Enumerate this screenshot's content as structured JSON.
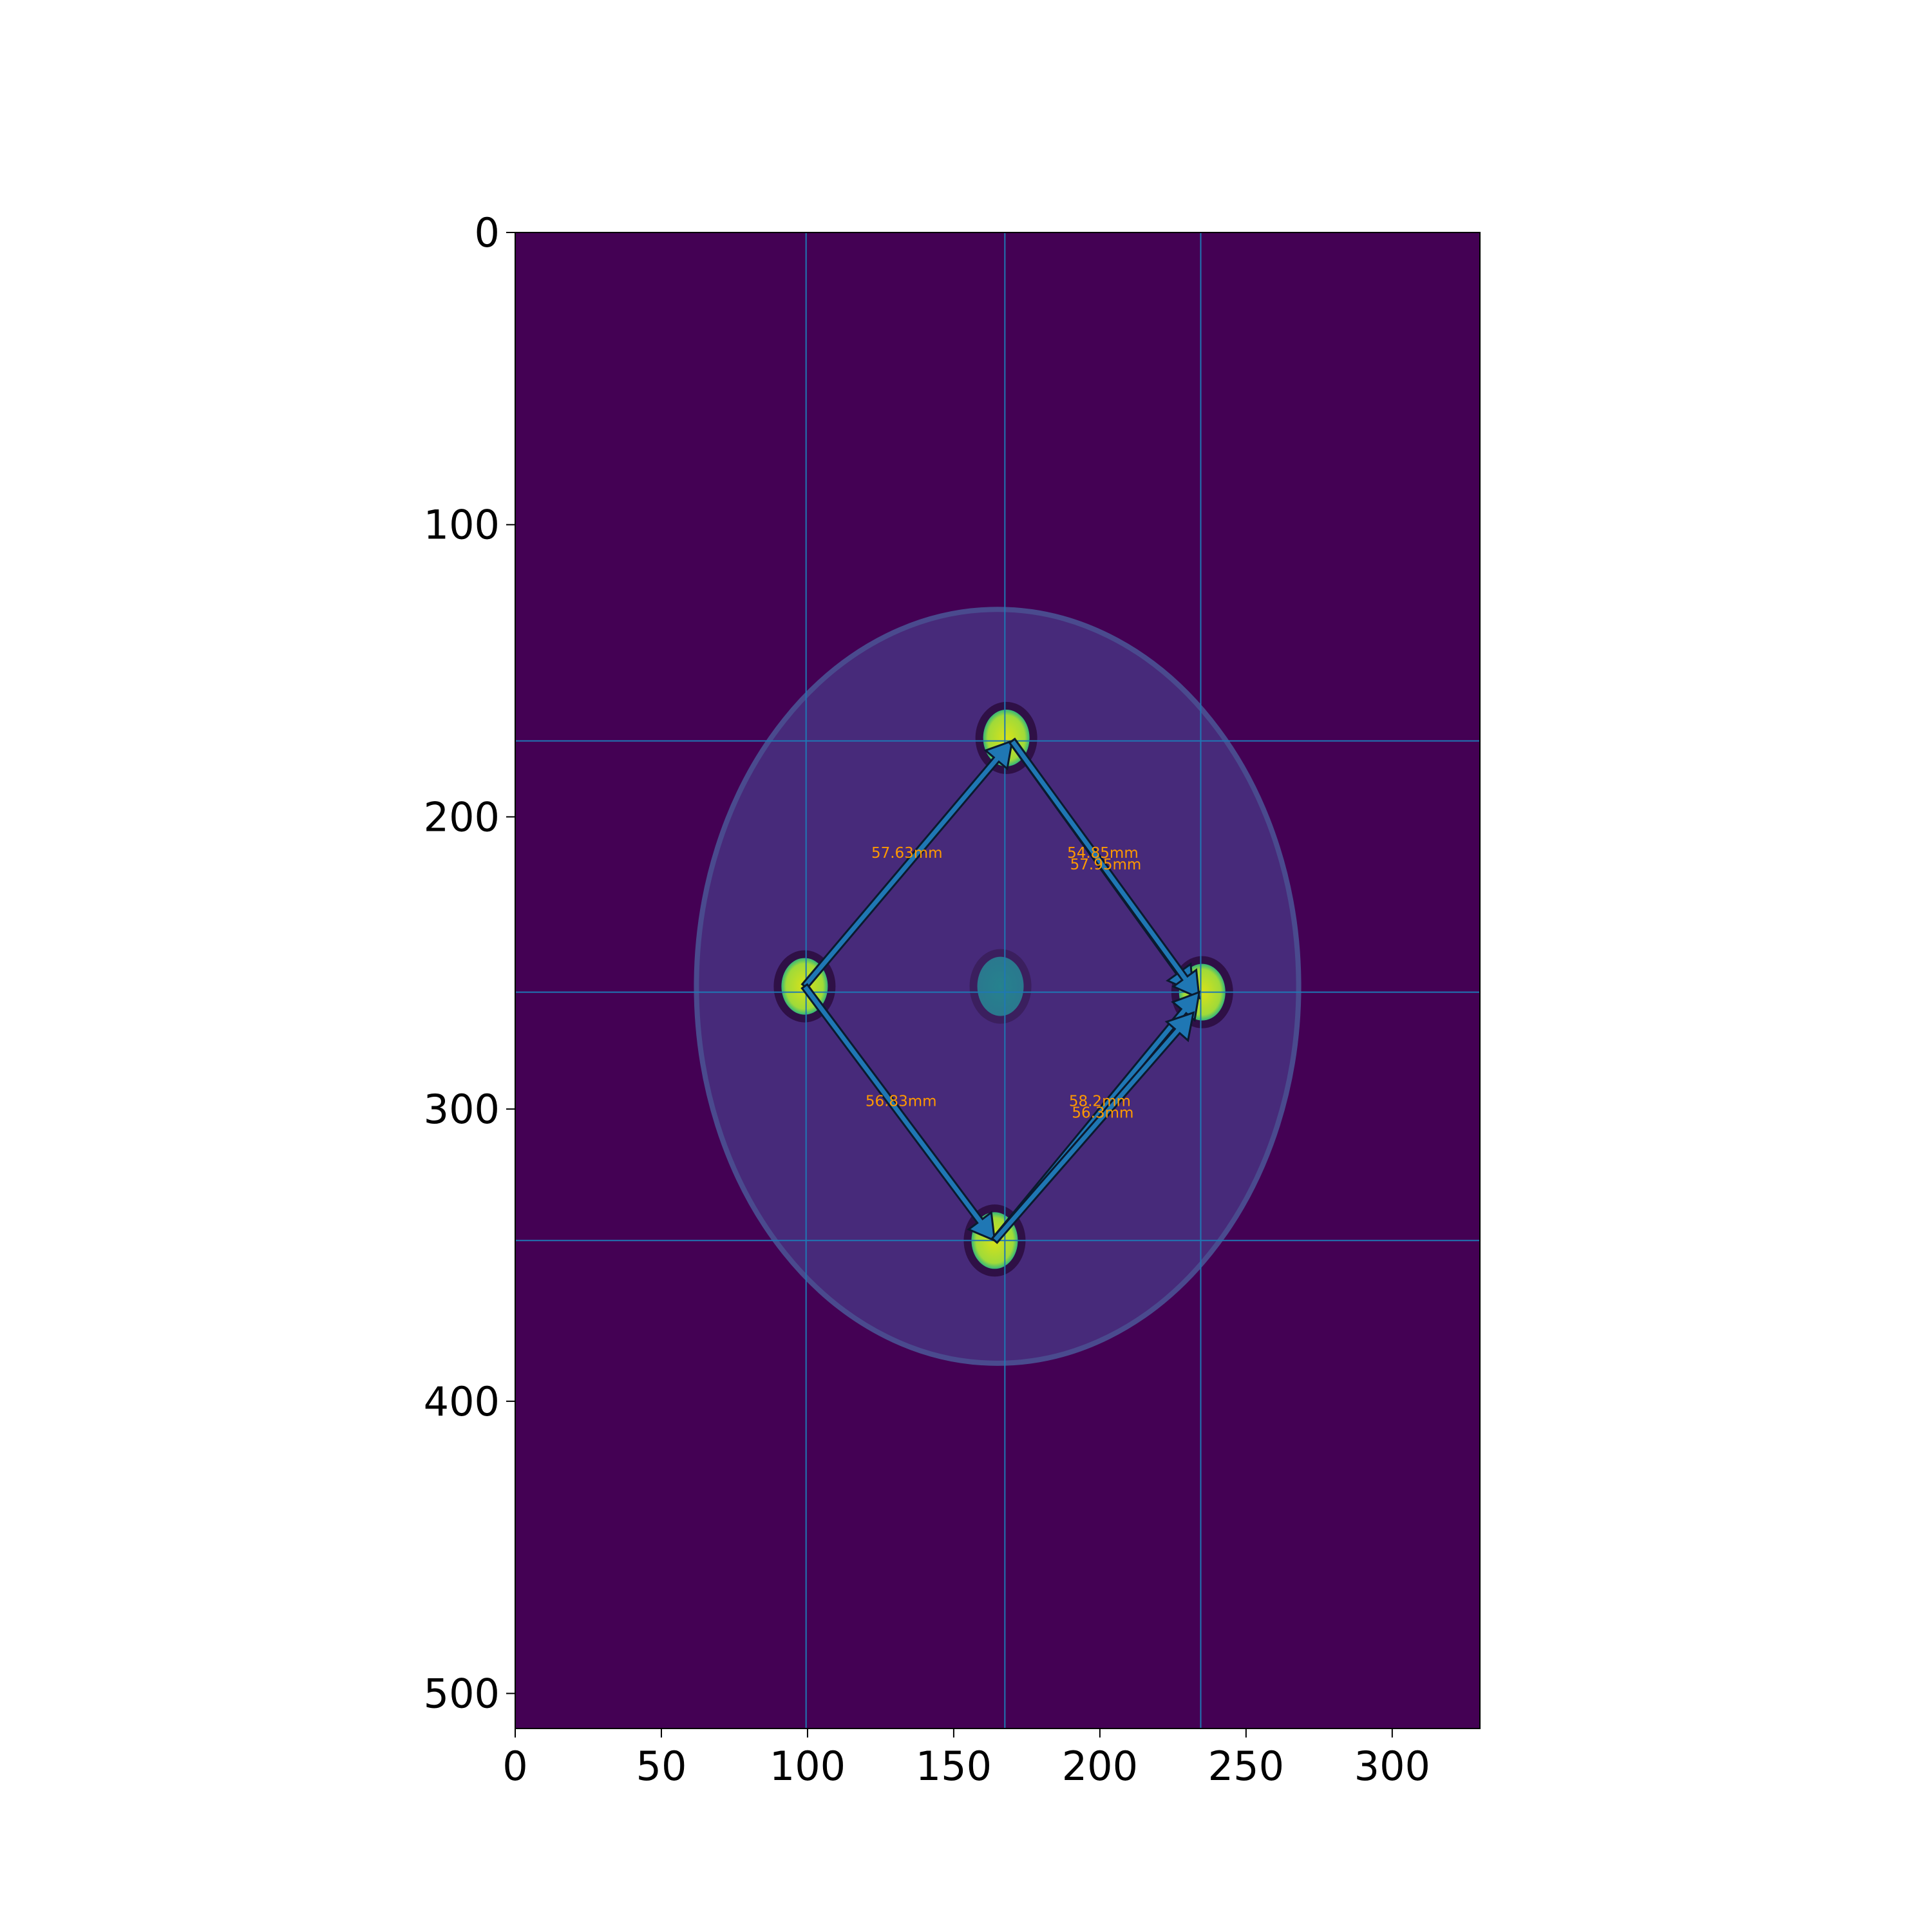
{
  "chart_data": {
    "type": "image",
    "title": "",
    "xlabel": "",
    "ylabel": "",
    "xlim": [
      0,
      330
    ],
    "ylim": [
      512,
      0
    ],
    "x_ticks": [
      0,
      50,
      100,
      150,
      200,
      250,
      300
    ],
    "y_ticks": [
      0,
      100,
      200,
      300,
      400,
      500
    ],
    "grid": false,
    "colors": {
      "background": "#440154",
      "phantom": "#472a7a",
      "marker": "#b5de2b",
      "center_blob": "#21918c",
      "guide_line": "#1f77b4",
      "arrow_fill": "#1f77b4",
      "label": "#ff9900"
    },
    "phantom_ellipse": {
      "cx": 165,
      "cy": 258,
      "rx": 103,
      "ry": 129
    },
    "markers": [
      {
        "name": "top",
        "x": 168,
        "y": 173
      },
      {
        "name": "left",
        "x": 99,
        "y": 258
      },
      {
        "name": "right",
        "x": 235,
        "y": 260
      },
      {
        "name": "bottom",
        "x": 164,
        "y": 345
      },
      {
        "name": "center",
        "x": 166,
        "y": 258
      }
    ],
    "guide_lines": {
      "vertical": [
        99.5,
        167.5,
        234.5
      ],
      "horizontal": [
        174,
        260,
        345
      ]
    },
    "arrows": [
      {
        "from": [
          99,
          258
        ],
        "to": [
          170,
          174
        ]
      },
      {
        "from": [
          170,
          174
        ],
        "to": [
          232,
          260
        ]
      },
      {
        "from": [
          170,
          174
        ],
        "to": [
          234,
          262
        ]
      },
      {
        "from": [
          99,
          258
        ],
        "to": [
          164,
          345
        ]
      },
      {
        "from": [
          164,
          345
        ],
        "to": [
          234,
          260
        ]
      },
      {
        "from": [
          164,
          345
        ],
        "to": [
          232,
          267
        ]
      }
    ],
    "annotations": [
      {
        "text": "57.63mm",
        "x": 134,
        "y": 214
      },
      {
        "text": "54.85mm",
        "x": 201,
        "y": 214
      },
      {
        "text": "57.95mm",
        "x": 202,
        "y": 218
      },
      {
        "text": "56.83mm",
        "x": 132,
        "y": 299
      },
      {
        "text": "58.2mm",
        "x": 200,
        "y": 299
      },
      {
        "text": "56.3mm",
        "x": 201,
        "y": 303
      }
    ]
  }
}
